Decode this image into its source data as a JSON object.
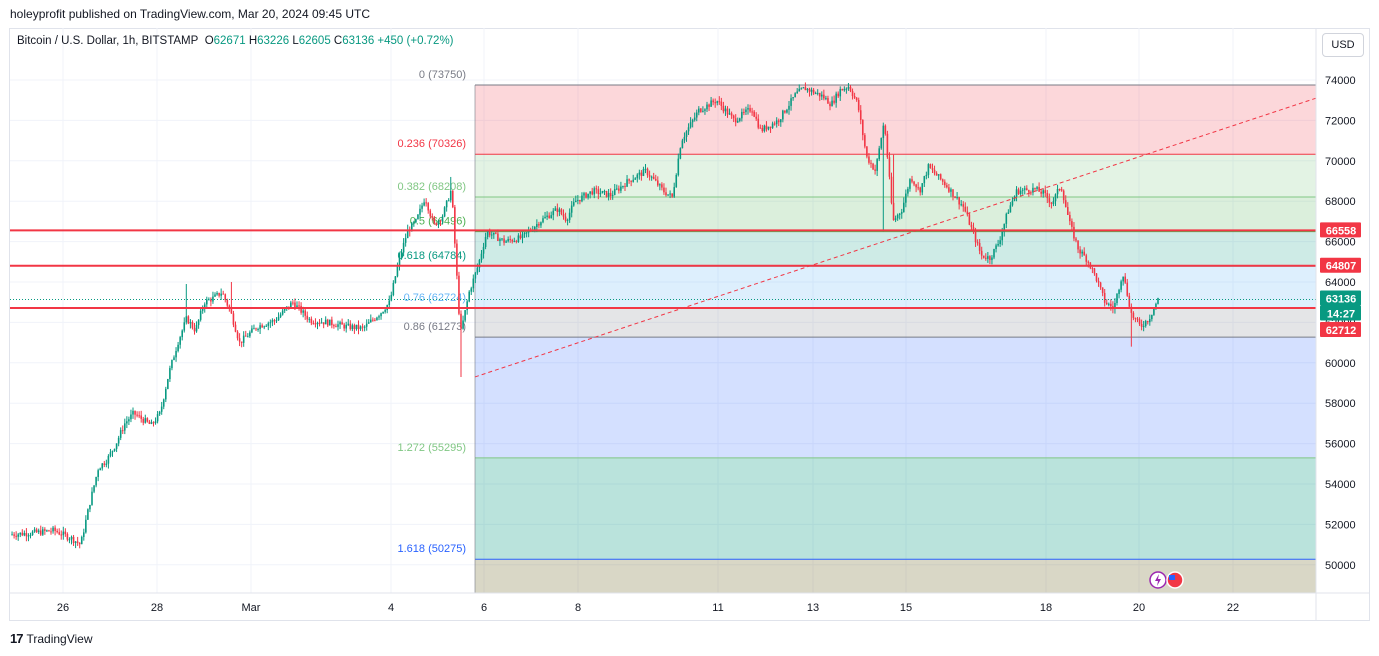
{
  "header": {
    "published": "holeyprofit published on TradingView.com, Mar 20, 2024 09:45 UTC"
  },
  "legend": {
    "symbol": "Bitcoin / U.S. Dollar, 1h, BITSTAMP",
    "o_label": "O",
    "o": "62671",
    "h_label": "H",
    "h": "63226",
    "l_label": "L",
    "l": "62605",
    "c_label": "C",
    "c": "63136",
    "change": "+450 (+0.72%)"
  },
  "currency_button": "USD",
  "footer": {
    "brand": "TradingView",
    "logo": "17"
  },
  "colors": {
    "up": "#089981",
    "down": "#f23645",
    "grid": "#f0f3fa",
    "level_red": "#f23645",
    "fib_dashed": "#f23645"
  },
  "chart_data": {
    "type": "candlestick",
    "symbol": "BTCUSD",
    "timeframe": "1h",
    "ylim": [
      48500,
      75000
    ],
    "y_ticks": [
      "74000",
      "72000",
      "70000",
      "68000",
      "66000",
      "64000",
      "62000",
      "60000",
      "58000",
      "56000",
      "54000",
      "52000",
      "50000"
    ],
    "x_ticks": [
      "26",
      "28",
      "Mar",
      "4",
      "6",
      "8",
      "11",
      "13",
      "15",
      "18",
      "20",
      "22"
    ],
    "price_path": [
      [
        0,
        51500
      ],
      [
        3,
        51600
      ],
      [
        5,
        51700
      ],
      [
        7,
        51300
      ],
      [
        8,
        51000
      ],
      [
        9,
        53000
      ],
      [
        10,
        54800
      ],
      [
        11,
        55200
      ],
      [
        12,
        56000
      ],
      [
        13,
        57000
      ],
      [
        14,
        57500
      ],
      [
        16,
        56900
      ],
      [
        17,
        57500
      ],
      [
        18,
        59500
      ],
      [
        19,
        61000
      ],
      [
        20,
        62200
      ],
      [
        21,
        61600
      ],
      [
        22,
        63000
      ],
      [
        23,
        63200
      ],
      [
        24,
        63500
      ],
      [
        25,
        62500
      ],
      [
        26,
        61000
      ],
      [
        28,
        61800
      ],
      [
        30,
        62100
      ],
      [
        32,
        63000
      ],
      [
        34,
        62100
      ],
      [
        36,
        62000
      ],
      [
        38,
        61800
      ],
      [
        40,
        61700
      ],
      [
        42,
        62500
      ],
      [
        43,
        63000
      ],
      [
        44,
        65000
      ],
      [
        45,
        66500
      ],
      [
        46,
        67000
      ],
      [
        47,
        68200
      ],
      [
        48,
        66800
      ],
      [
        49,
        67300
      ],
      [
        50,
        68600
      ],
      [
        51,
        61400
      ],
      [
        52,
        63500
      ],
      [
        53,
        64800
      ],
      [
        54,
        66500
      ],
      [
        56,
        66000
      ],
      [
        58,
        66200
      ],
      [
        60,
        67000
      ],
      [
        62,
        67600
      ],
      [
        63,
        67100
      ],
      [
        64,
        68000
      ],
      [
        66,
        68500
      ],
      [
        68,
        68300
      ],
      [
        70,
        69000
      ],
      [
        72,
        69500
      ],
      [
        74,
        68500
      ],
      [
        75,
        68200
      ],
      [
        76,
        71000
      ],
      [
        78,
        72500
      ],
      [
        80,
        73000
      ],
      [
        82,
        72000
      ],
      [
        84,
        72600
      ],
      [
        85,
        71500
      ],
      [
        87,
        72000
      ],
      [
        89,
        73300
      ],
      [
        90,
        73600
      ],
      [
        92,
        73200
      ],
      [
        93,
        72800
      ],
      [
        94,
        73500
      ],
      [
        95,
        73700
      ],
      [
        96,
        72800
      ],
      [
        97,
        70200
      ],
      [
        98,
        69500
      ],
      [
        99,
        72000
      ],
      [
        100,
        67000
      ],
      [
        101,
        67600
      ],
      [
        102,
        69200
      ],
      [
        103,
        68500
      ],
      [
        104,
        69700
      ],
      [
        106,
        68800
      ],
      [
        108,
        67700
      ],
      [
        110,
        65300
      ],
      [
        111,
        65200
      ],
      [
        112,
        66000
      ],
      [
        113,
        67500
      ],
      [
        114,
        68500
      ],
      [
        116,
        68600
      ],
      [
        117,
        68400
      ],
      [
        118,
        67900
      ],
      [
        119,
        68800
      ],
      [
        120,
        66900
      ],
      [
        121,
        65600
      ],
      [
        122,
        65100
      ],
      [
        123,
        64200
      ],
      [
        124,
        63000
      ],
      [
        125,
        62700
      ],
      [
        126,
        64500
      ],
      [
        127,
        62400
      ],
      [
        128,
        61800
      ],
      [
        129,
        62200
      ],
      [
        130,
        63136
      ]
    ],
    "fib_retracement": [
      {
        "ratio": "0",
        "price": 73750,
        "label": "0 (73750)",
        "color": "#787b86"
      },
      {
        "ratio": "0.236",
        "price": 70326,
        "label": "0.236 (70326)",
        "color": "#f23645"
      },
      {
        "ratio": "0.382",
        "price": 68208,
        "label": "0.382 (68208)",
        "color": "#81c784"
      },
      {
        "ratio": "0.5",
        "price": 66496,
        "label": "0.5 (66496)",
        "color": "#4caf50"
      },
      {
        "ratio": "0.618",
        "price": 64784,
        "label": "0.618 (64784)",
        "color": "#089981"
      },
      {
        "ratio": "0.76",
        "price": 62724,
        "label": "0.76 (62724)",
        "color": "#64b5f6"
      },
      {
        "ratio": "0.86",
        "price": 61273,
        "label": "0.86 (61273)",
        "color": "#787b86"
      },
      {
        "ratio": "1.272",
        "price": 55295,
        "label": "1.272 (55295)",
        "color": "#81c784"
      },
      {
        "ratio": "1.618",
        "price": 50275,
        "label": "1.618 (50275)",
        "color": "#2962ff"
      }
    ],
    "horizontal_levels": [
      66558,
      64807,
      62712
    ],
    "price_labels": [
      {
        "text": "66558",
        "color": "#f23645"
      },
      {
        "text": "64807",
        "color": "#f23645"
      },
      {
        "text": "63136",
        "color": "#089981"
      },
      {
        "text": "14:27",
        "color": "#089981"
      },
      {
        "text": "62712",
        "color": "#f23645"
      }
    ],
    "trendline": {
      "from_price": 59300,
      "to_price": 73100,
      "style": "dashed"
    }
  }
}
